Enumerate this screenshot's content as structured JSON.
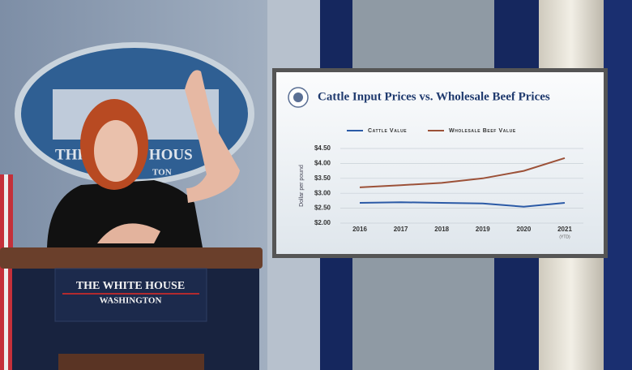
{
  "scene": {
    "backdrop_seal": [
      "THE WHITE HOUS",
      "TON"
    ],
    "podium": {
      "title": "THE WHITE HOUSE",
      "subtitle": "WASHINGTON"
    }
  },
  "chart_data": {
    "type": "line",
    "title": "Cattle Input Prices vs. Wholesale Beef Prices",
    "y_label": "Dollar per pound",
    "categories": [
      "2016",
      "2017",
      "2018",
      "2019",
      "2020",
      "2021"
    ],
    "annotations": [
      "(YTD)"
    ],
    "series": [
      {
        "name": "Cattle Value",
        "color": "#2b5aa6",
        "values": [
          2.68,
          2.7,
          2.68,
          2.66,
          2.55,
          2.68
        ]
      },
      {
        "name": "Wholesale Beef Value",
        "color": "#9c5138",
        "values": [
          3.2,
          3.27,
          3.35,
          3.5,
          3.75,
          4.18
        ]
      }
    ],
    "ylim": [
      2.0,
      4.5
    ],
    "yticks": [
      {
        "value": 2.0,
        "label": "$2.00"
      },
      {
        "value": 2.5,
        "label": "$2.50"
      },
      {
        "value": 3.0,
        "label": "$3.00"
      },
      {
        "value": 3.5,
        "label": "$3.50"
      },
      {
        "value": 4.0,
        "label": "$4.00"
      },
      {
        "value": 4.5,
        "label": "$4.50"
      }
    ],
    "grid": true
  }
}
